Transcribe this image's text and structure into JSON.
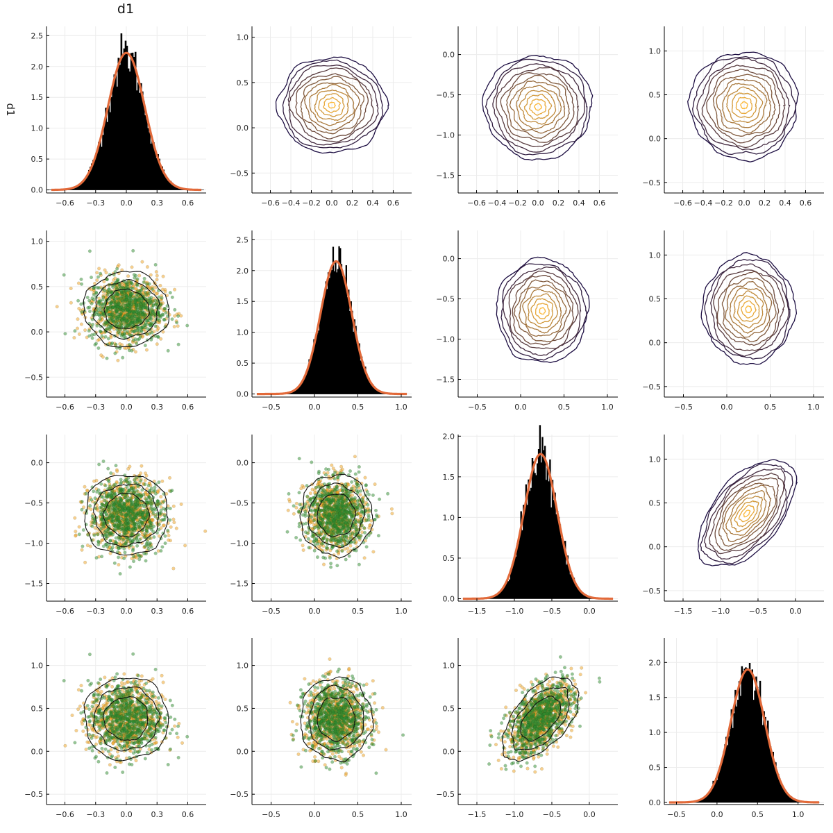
{
  "figure": {
    "title": "d1",
    "ylabel": "d1",
    "colors": {
      "hist": "#000000",
      "density": "#e26a3a",
      "scatter_a": "#2e8b2e",
      "scatter_b": "#f0a020",
      "contour_low": "#1b0c41",
      "contour_high": "#fcb93a",
      "grid": "#ececec"
    }
  },
  "chart_data": [
    {
      "type": "histogram",
      "row": 0,
      "col": 0,
      "x_ticks": [
        -0.6,
        -0.3,
        0.0,
        0.3,
        0.6
      ],
      "y_ticks": [
        0.0,
        0.5,
        1.0,
        1.5,
        2.0,
        2.5
      ],
      "xlim": [
        -0.78,
        0.78
      ],
      "ylim": [
        -0.05,
        2.65
      ],
      "mean": 0.0,
      "sd": 0.18,
      "peak": 2.22
    },
    {
      "type": "contour",
      "row": 0,
      "col": 1,
      "x_ticks": [
        -0.6,
        -0.4,
        -0.2,
        0.0,
        0.2,
        0.4,
        0.6
      ],
      "y_ticks": [
        -0.5,
        0.0,
        0.5,
        1.0
      ],
      "xlim": [
        -0.78,
        0.78
      ],
      "ylim": [
        -0.72,
        1.12
      ],
      "center": [
        0.0,
        0.25
      ],
      "spread": [
        0.18,
        0.18
      ]
    },
    {
      "type": "contour",
      "row": 0,
      "col": 2,
      "x_ticks": [
        -0.6,
        -0.4,
        -0.2,
        0.0,
        0.2,
        0.4,
        0.6
      ],
      "y_ticks": [
        -1.5,
        -1.0,
        -0.5,
        0.0
      ],
      "xlim": [
        -0.78,
        0.78
      ],
      "ylim": [
        -1.72,
        0.35
      ],
      "center": [
        0.0,
        -0.65
      ],
      "spread": [
        0.18,
        0.22
      ]
    },
    {
      "type": "contour",
      "row": 0,
      "col": 3,
      "x_ticks": [
        -0.6,
        -0.4,
        -0.2,
        0.0,
        0.2,
        0.4,
        0.6
      ],
      "y_ticks": [
        -0.5,
        0.0,
        0.5,
        1.0
      ],
      "xlim": [
        -0.78,
        0.78
      ],
      "ylim": [
        -0.62,
        1.28
      ],
      "center": [
        0.0,
        0.38
      ],
      "spread": [
        0.18,
        0.21
      ]
    },
    {
      "type": "scatter",
      "row": 1,
      "col": 0,
      "x_ticks": [
        -0.6,
        -0.3,
        0.0,
        0.3,
        0.6
      ],
      "y_ticks": [
        -0.5,
        0.0,
        0.5,
        1.0
      ],
      "xlim": [
        -0.78,
        0.78
      ],
      "ylim": [
        -0.72,
        1.12
      ],
      "center": [
        0.0,
        0.25
      ],
      "spread": [
        0.18,
        0.18
      ]
    },
    {
      "type": "histogram",
      "row": 1,
      "col": 1,
      "x_ticks": [
        -0.5,
        0.0,
        0.5,
        1.0
      ],
      "y_ticks": [
        0.0,
        0.5,
        1.0,
        1.5,
        2.0,
        2.5
      ],
      "xlim": [
        -0.72,
        1.12
      ],
      "ylim": [
        -0.05,
        2.65
      ],
      "mean": 0.25,
      "sd": 0.18,
      "peak": 2.15
    },
    {
      "type": "contour",
      "row": 1,
      "col": 2,
      "x_ticks": [
        -0.5,
        0.0,
        0.5,
        1.0
      ],
      "y_ticks": [
        -1.5,
        -1.0,
        -0.5,
        0.0
      ],
      "xlim": [
        -0.72,
        1.12
      ],
      "ylim": [
        -1.72,
        0.35
      ],
      "center": [
        0.25,
        -0.65
      ],
      "spread": [
        0.18,
        0.22
      ]
    },
    {
      "type": "contour",
      "row": 1,
      "col": 3,
      "x_ticks": [
        -0.5,
        0.0,
        0.5,
        1.0
      ],
      "y_ticks": [
        -0.5,
        0.0,
        0.5,
        1.0
      ],
      "xlim": [
        -0.72,
        1.12
      ],
      "ylim": [
        -0.62,
        1.28
      ],
      "center": [
        0.25,
        0.38
      ],
      "spread": [
        0.18,
        0.21
      ]
    },
    {
      "type": "scatter",
      "row": 2,
      "col": 0,
      "x_ticks": [
        -0.6,
        -0.3,
        0.0,
        0.3,
        0.6
      ],
      "y_ticks": [
        -1.5,
        -1.0,
        -0.5,
        0.0
      ],
      "xlim": [
        -0.78,
        0.78
      ],
      "ylim": [
        -1.72,
        0.35
      ],
      "center": [
        0.0,
        -0.65
      ],
      "spread": [
        0.18,
        0.22
      ]
    },
    {
      "type": "scatter",
      "row": 2,
      "col": 1,
      "x_ticks": [
        -0.5,
        0.0,
        0.5,
        1.0
      ],
      "y_ticks": [
        -1.5,
        -1.0,
        -0.5,
        0.0
      ],
      "xlim": [
        -0.72,
        1.12
      ],
      "ylim": [
        -1.72,
        0.35
      ],
      "center": [
        0.25,
        -0.65
      ],
      "spread": [
        0.18,
        0.22
      ]
    },
    {
      "type": "histogram",
      "row": 2,
      "col": 2,
      "x_ticks": [
        -1.5,
        -1.0,
        -0.5,
        0.0
      ],
      "y_ticks": [
        0.0,
        0.5,
        1.0,
        1.5,
        2.0
      ],
      "xlim": [
        -1.75,
        0.38
      ],
      "ylim": [
        -0.03,
        2.02
      ],
      "mean": -0.65,
      "sd": 0.22,
      "peak": 1.78
    },
    {
      "type": "contour",
      "row": 2,
      "col": 3,
      "x_ticks": [
        -1.5,
        -1.0,
        -0.5,
        0.0
      ],
      "y_ticks": [
        -0.5,
        0.0,
        0.5,
        1.0
      ],
      "xlim": [
        -1.75,
        0.38
      ],
      "ylim": [
        -0.62,
        1.28
      ],
      "center": [
        -0.65,
        0.38
      ],
      "spread": [
        0.22,
        0.21
      ],
      "rho": 0.55
    },
    {
      "type": "scatter",
      "row": 3,
      "col": 0,
      "x_ticks": [
        -0.6,
        -0.3,
        0.0,
        0.3,
        0.6
      ],
      "y_ticks": [
        -0.5,
        0.0,
        0.5,
        1.0
      ],
      "xlim": [
        -0.78,
        0.78
      ],
      "ylim": [
        -0.62,
        1.32
      ],
      "center": [
        0.0,
        0.38
      ],
      "spread": [
        0.18,
        0.21
      ]
    },
    {
      "type": "scatter",
      "row": 3,
      "col": 1,
      "x_ticks": [
        -0.5,
        0.0,
        0.5,
        1.0
      ],
      "y_ticks": [
        -0.5,
        0.0,
        0.5,
        1.0
      ],
      "xlim": [
        -0.72,
        1.12
      ],
      "ylim": [
        -0.62,
        1.32
      ],
      "center": [
        0.25,
        0.38
      ],
      "spread": [
        0.18,
        0.21
      ]
    },
    {
      "type": "scatter",
      "row": 3,
      "col": 2,
      "x_ticks": [
        -1.5,
        -1.0,
        -0.5,
        0.0
      ],
      "y_ticks": [
        -0.5,
        0.0,
        0.5,
        1.0
      ],
      "xlim": [
        -1.75,
        0.38
      ],
      "ylim": [
        -0.62,
        1.32
      ],
      "center": [
        -0.65,
        0.38
      ],
      "spread": [
        0.22,
        0.21
      ],
      "rho": 0.55
    },
    {
      "type": "histogram",
      "row": 3,
      "col": 3,
      "x_ticks": [
        -0.5,
        0.0,
        0.5,
        1.0
      ],
      "y_ticks": [
        0.0,
        0.5,
        1.0,
        1.5,
        2.0
      ],
      "xlim": [
        -0.65,
        1.32
      ],
      "ylim": [
        -0.03,
        2.35
      ],
      "mean": 0.38,
      "sd": 0.21,
      "peak": 1.9
    }
  ]
}
